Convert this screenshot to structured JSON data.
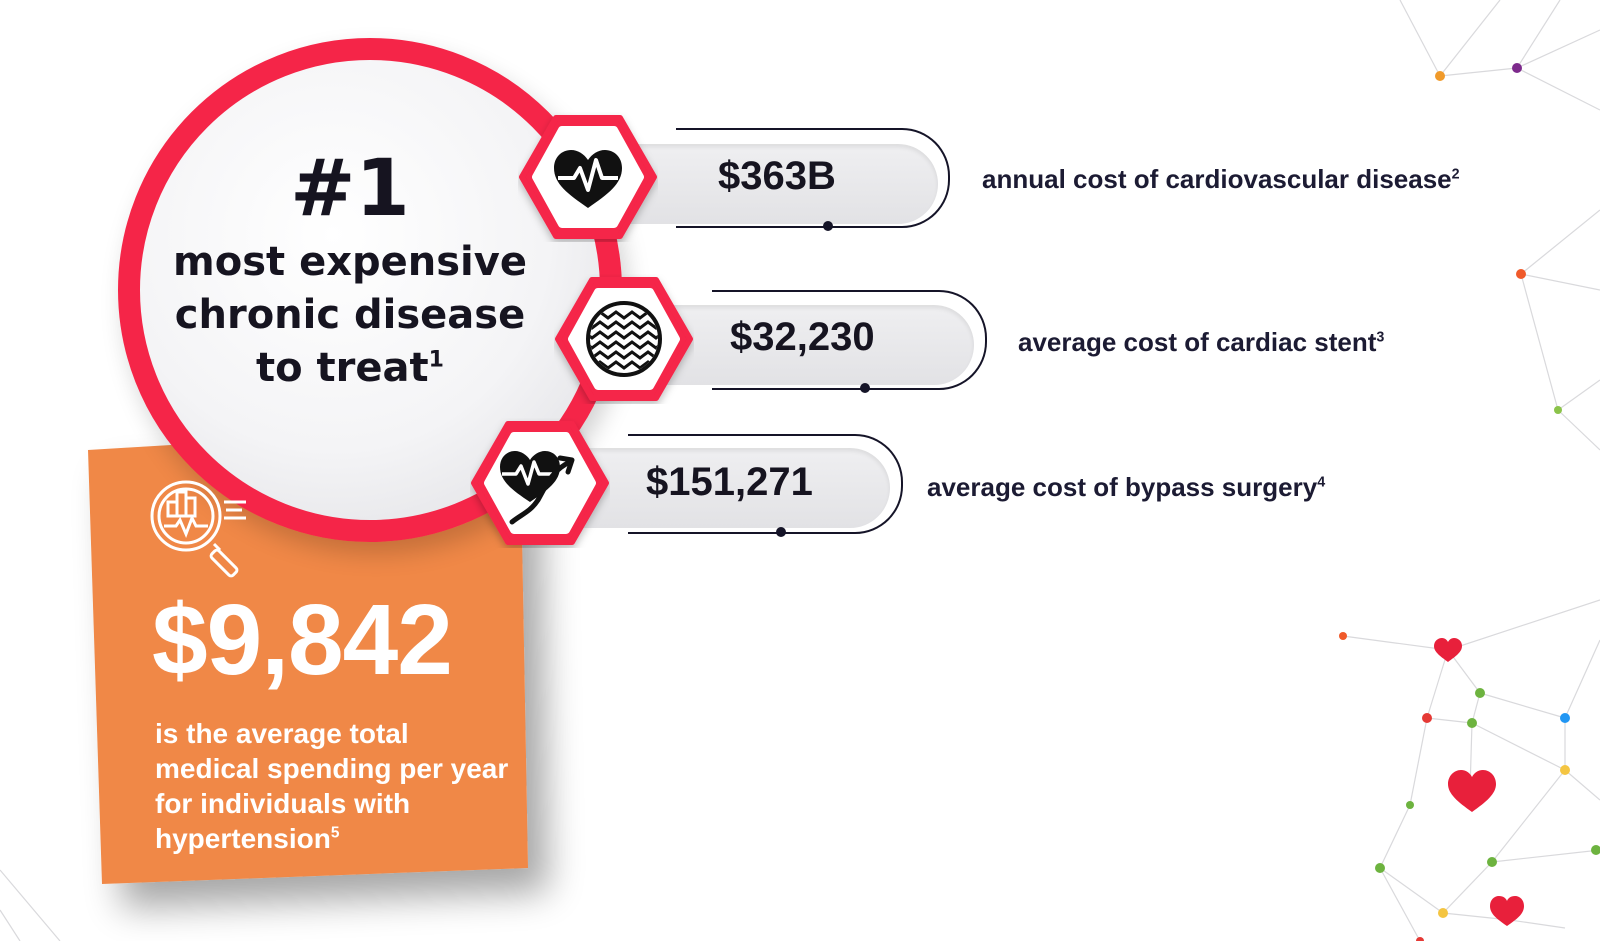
{
  "hero": {
    "rank": "#1",
    "description_lines": [
      "most expensive",
      "chronic disease",
      "to treat"
    ],
    "footnote": "1"
  },
  "stats": [
    {
      "value": "$363B",
      "label": "annual cost of cardiovascular disease",
      "footnote": "2",
      "icon": "heart-pulse-icon"
    },
    {
      "value": "$32,230",
      "label": "average cost of cardiac stent",
      "footnote": "3",
      "icon": "stent-mesh-icon"
    },
    {
      "value": "$151,271",
      "label": "average cost of bypass surgery",
      "footnote": "4",
      "icon": "heart-bypass-icon"
    }
  ],
  "spending": {
    "amount": "$9,842",
    "description": "is the average total medical spending per year for individuals with hypertension",
    "footnote": "5",
    "icon": "chart-magnifier-icon"
  },
  "colors": {
    "accent_red": "#f52548",
    "orange": "#f08847",
    "dark_text": "#1c1b33",
    "pill_gray": "#e6e6e9"
  }
}
